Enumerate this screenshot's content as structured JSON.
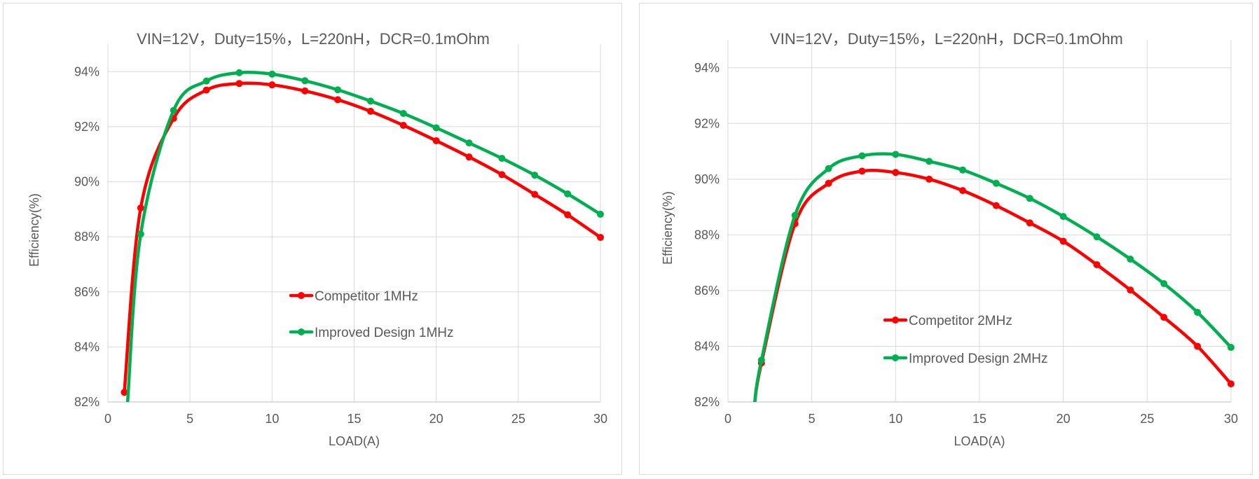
{
  "chart_data": [
    {
      "type": "line",
      "title": "VIN=12V，Duty=15%，L=220nH，DCR=0.1mOhm",
      "xlabel": "LOAD(A)",
      "ylabel": "Efficiency(%)",
      "xlim": [
        0,
        30
      ],
      "ylim": [
        82,
        95
      ],
      "x_ticks": [
        0,
        5,
        10,
        15,
        20,
        25,
        30
      ],
      "y_ticks": [
        82,
        84,
        86,
        88,
        90,
        92,
        94
      ],
      "x_tick_labels": [
        "0",
        "5",
        "10",
        "15",
        "20",
        "25",
        "30"
      ],
      "y_tick_labels": [
        "82%",
        "84%",
        "86%",
        "88%",
        "90%",
        "92%",
        "94%"
      ],
      "grid": true,
      "legend_position": "center",
      "series": [
        {
          "name": "Competitor 1MHz",
          "color": "#ff0000",
          "x": [
            1,
            2,
            4,
            6,
            8,
            10,
            12,
            14,
            16,
            18,
            20,
            22,
            24,
            26,
            28,
            30
          ],
          "y": [
            82.35,
            89.05,
            92.3,
            93.33,
            93.57,
            93.52,
            93.3,
            92.98,
            92.56,
            92.05,
            91.49,
            90.9,
            90.26,
            89.54,
            88.8,
            87.98
          ]
        },
        {
          "name": "Improved Design 1MHz",
          "color": "#00b050",
          "x": [
            1.2,
            2,
            4,
            6,
            8,
            10,
            12,
            14,
            16,
            18,
            20,
            22,
            24,
            26,
            28,
            30
          ],
          "y": [
            82,
            88.1,
            92.59,
            93.66,
            93.96,
            93.91,
            93.67,
            93.34,
            92.93,
            92.48,
            91.96,
            91.41,
            90.85,
            90.24,
            89.56,
            88.82
          ]
        }
      ]
    },
    {
      "type": "line",
      "title": "VIN=12V，Duty=15%，L=220nH，DCR=0.1mOhm",
      "xlabel": "LOAD(A)",
      "ylabel": "Efficiency(%)",
      "xlim": [
        0,
        30
      ],
      "ylim": [
        82,
        95
      ],
      "x_ticks": [
        0,
        5,
        10,
        15,
        20,
        25,
        30
      ],
      "y_ticks": [
        82,
        84,
        86,
        88,
        90,
        92,
        94
      ],
      "x_tick_labels": [
        "0",
        "5",
        "10",
        "15",
        "20",
        "25",
        "30"
      ],
      "y_tick_labels": [
        "82%",
        "84%",
        "86%",
        "88%",
        "90%",
        "92%",
        "94%"
      ],
      "grid": true,
      "legend_position": "center",
      "series": [
        {
          "name": "Competitor 2MHz",
          "color": "#ff0000",
          "x": [
            1.6,
            2,
            4,
            6,
            8,
            10,
            12,
            14,
            16,
            18,
            20,
            22,
            24,
            26,
            28,
            30
          ],
          "y": [
            82,
            83.4,
            88.4,
            89.85,
            90.29,
            90.24,
            90.0,
            89.59,
            89.05,
            88.43,
            87.77,
            86.93,
            86.02,
            85.04,
            84.0,
            82.65
          ]
        },
        {
          "name": "Improved Design 2MHz",
          "color": "#00b050",
          "x": [
            1.6,
            2,
            4,
            6,
            8,
            10,
            12,
            14,
            16,
            18,
            20,
            22,
            24,
            26,
            28,
            30
          ],
          "y": [
            82,
            83.5,
            88.7,
            90.38,
            90.84,
            90.89,
            90.64,
            90.33,
            89.85,
            89.31,
            88.66,
            87.93,
            87.13,
            86.25,
            85.22,
            83.96
          ]
        }
      ]
    }
  ]
}
